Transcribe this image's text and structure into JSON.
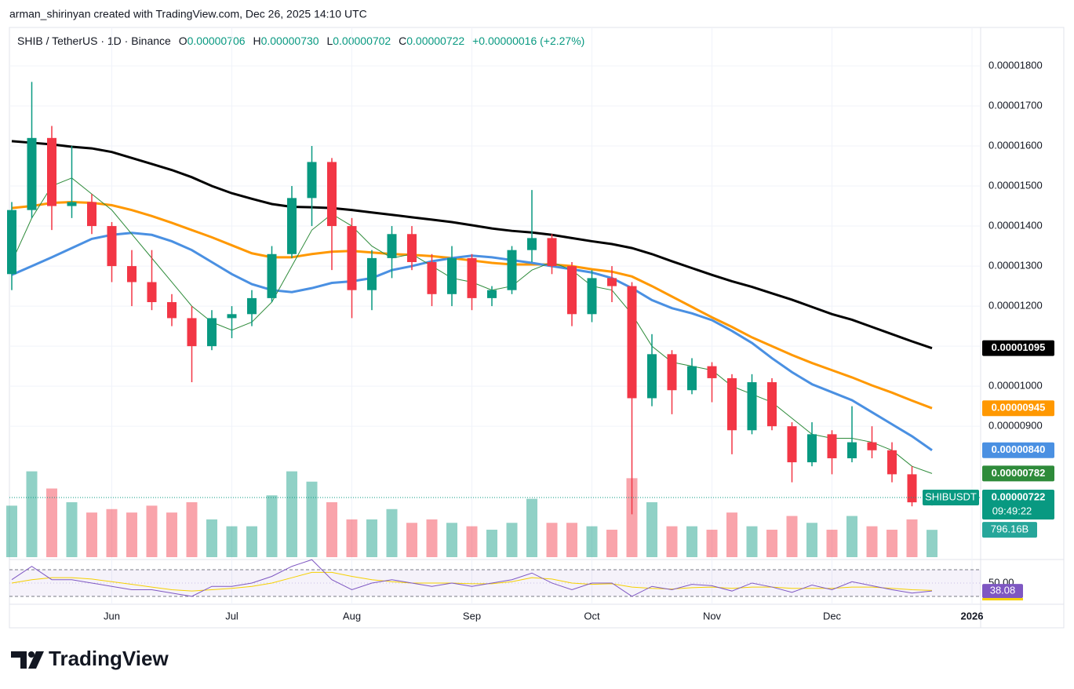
{
  "header": {
    "credit": "arman_shirinyan created with TradingView.com, Dec 26, 2025 14:10 UTC",
    "symbol": "SHIB / TetherUS · 1D · Binance",
    "o": "O",
    "open": "0.00000706",
    "h": "H",
    "high": "0.00000730",
    "l": "L",
    "low": "0.00000702",
    "c": "C",
    "close": "0.00000722",
    "change": "+0.00000016 (+2.27%)"
  },
  "chart_data": {
    "type": "candlestick",
    "categories": [
      null,
      null,
      null,
      null,
      null,
      "Jun",
      null,
      null,
      null,
      null,
      null,
      "Jul",
      null,
      null,
      null,
      null,
      null,
      "Aug",
      null,
      null,
      null,
      null,
      null,
      "Sep",
      null,
      null,
      null,
      null,
      null,
      "Oct",
      null,
      null,
      null,
      null,
      null,
      "Nov",
      null,
      null,
      null,
      null,
      null,
      "Dec",
      null,
      null,
      null,
      null,
      null,
      null,
      "2026"
    ],
    "open": [
      1.28e-05,
      1.44e-05,
      1.62e-05,
      1.45e-05,
      1.46e-05,
      1.4e-05,
      1.3e-05,
      1.26e-05,
      1.21e-05,
      1.17e-05,
      1.1e-05,
      1.17e-05,
      1.18e-05,
      1.22e-05,
      1.33e-05,
      1.47e-05,
      1.56e-05,
      1.4e-05,
      1.24e-05,
      1.32e-05,
      1.38e-05,
      1.31e-05,
      1.23e-05,
      1.32e-05,
      1.22e-05,
      1.24e-05,
      1.34e-05,
      1.37e-05,
      1.3e-05,
      1.18e-05,
      1.27e-05,
      1.25e-05,
      9.7e-06,
      1.08e-05,
      9.9e-06,
      1.05e-05,
      1.02e-05,
      8.9e-06,
      1.01e-05,
      9e-06,
      8.1e-06,
      8.8e-06,
      8.2e-06,
      8.6e-06,
      8.4e-06,
      7.8e-06,
      7.06e-06,
      null,
      null
    ],
    "high": [
      1.46e-05,
      1.76e-05,
      1.65e-05,
      1.6e-05,
      1.48e-05,
      1.41e-05,
      1.34e-05,
      1.34e-05,
      1.23e-05,
      1.2e-05,
      1.19e-05,
      1.2e-05,
      1.24e-05,
      1.35e-05,
      1.5e-05,
      1.6e-05,
      1.57e-05,
      1.42e-05,
      1.34e-05,
      1.4e-05,
      1.4e-05,
      1.33e-05,
      1.35e-05,
      1.33e-05,
      1.25e-05,
      1.35e-05,
      1.49e-05,
      1.38e-05,
      1.31e-05,
      1.29e-05,
      1.3e-05,
      1.26e-05,
      1.13e-05,
      1.09e-05,
      1.07e-05,
      1.06e-05,
      1.03e-05,
      1.03e-05,
      1.02e-05,
      9.1e-06,
      9.1e-06,
      8.9e-06,
      9.5e-06,
      9e-06,
      8.6e-06,
      8e-06,
      7.3e-06,
      null,
      null
    ],
    "low": [
      1.24e-05,
      1.42e-05,
      1.39e-05,
      1.42e-05,
      1.38e-05,
      1.26e-05,
      1.2e-05,
      1.19e-05,
      1.15e-05,
      1.01e-05,
      1.09e-05,
      1.12e-05,
      1.15e-05,
      1.21e-05,
      1.32e-05,
      1.4e-05,
      1.29e-05,
      1.17e-05,
      1.19e-05,
      1.27e-05,
      1.29e-05,
      1.2e-05,
      1.2e-05,
      1.19e-05,
      1.2e-05,
      1.23e-05,
      1.31e-05,
      1.28e-05,
      1.15e-05,
      1.16e-05,
      1.21e-05,
      6.8e-06,
      9.5e-06,
      9.3e-06,
      9.8e-06,
      9.6e-06,
      8.3e-06,
      8.8e-06,
      8.9e-06,
      7.6e-06,
      8e-06,
      7.8e-06,
      8.1e-06,
      8.2e-06,
      7.6e-06,
      7e-06,
      7.02e-06,
      null,
      null
    ],
    "close": [
      1.44e-05,
      1.62e-05,
      1.45e-05,
      1.46e-05,
      1.4e-05,
      1.3e-05,
      1.26e-05,
      1.21e-05,
      1.17e-05,
      1.1e-05,
      1.17e-05,
      1.18e-05,
      1.22e-05,
      1.33e-05,
      1.47e-05,
      1.56e-05,
      1.4e-05,
      1.24e-05,
      1.32e-05,
      1.38e-05,
      1.31e-05,
      1.23e-05,
      1.32e-05,
      1.22e-05,
      1.24e-05,
      1.34e-05,
      1.37e-05,
      1.3e-05,
      1.18e-05,
      1.27e-05,
      1.25e-05,
      9.7e-06,
      1.08e-05,
      9.9e-06,
      1.05e-05,
      1.02e-05,
      8.9e-06,
      1.01e-05,
      9e-06,
      8.1e-06,
      8.8e-06,
      8.2e-06,
      8.6e-06,
      8.4e-06,
      7.8e-06,
      7.1e-06,
      7.22e-06,
      null,
      null
    ],
    "up_color": "#089981",
    "down_color": "#f23645",
    "ylim": [
      5.73e-06,
      1.896e-05
    ],
    "yticks": [
      {
        "value": 1.8e-05,
        "label": "0.00001800"
      },
      {
        "value": 1.7e-05,
        "label": "0.00001700"
      },
      {
        "value": 1.6e-05,
        "label": "0.00001600"
      },
      {
        "value": 1.5e-05,
        "label": "0.00001500"
      },
      {
        "value": 1.4e-05,
        "label": "0.00001400"
      },
      {
        "value": 1.3e-05,
        "label": "0.00001300"
      },
      {
        "value": 1.2e-05,
        "label": "0.00001200"
      },
      {
        "value": 1.1e-05,
        "label": "0.00001100"
      },
      {
        "value": 1e-05,
        "label": "0.00001000"
      },
      {
        "value": 9e-06,
        "label": "0.00000900"
      }
    ],
    "grid": true,
    "series": [
      {
        "color": "#000000",
        "last_label": "0.00001095",
        "values": [
          1.612e-05,
          1.608e-05,
          1.604e-05,
          1.598e-05,
          1.594e-05,
          1.585e-05,
          1.57e-05,
          1.555e-05,
          1.54e-05,
          1.522e-05,
          1.5e-05,
          1.482e-05,
          1.468e-05,
          1.455e-05,
          1.448e-05,
          1.447e-05,
          1.445e-05,
          1.44e-05,
          1.434e-05,
          1.428e-05,
          1.422e-05,
          1.416e-05,
          1.41e-05,
          1.402e-05,
          1.394e-05,
          1.388e-05,
          1.384e-05,
          1.378e-05,
          1.37e-05,
          1.362e-05,
          1.355e-05,
          1.345e-05,
          1.33e-05,
          1.312e-05,
          1.295e-05,
          1.278e-05,
          1.262e-05,
          1.248e-05,
          1.232e-05,
          1.216e-05,
          1.198e-05,
          1.18e-05,
          1.166e-05,
          1.148e-05,
          1.13e-05,
          1.112e-05,
          1.095e-05,
          null,
          null
        ]
      },
      {
        "color": "#ff9800",
        "last_label": "0.00000945",
        "values": [
          1.445e-05,
          1.45e-05,
          1.458e-05,
          1.46e-05,
          1.458e-05,
          1.452e-05,
          1.44e-05,
          1.425e-05,
          1.408e-05,
          1.39e-05,
          1.372e-05,
          1.352e-05,
          1.332e-05,
          1.322e-05,
          1.322e-05,
          1.33e-05,
          1.336e-05,
          1.338e-05,
          1.334e-05,
          1.33e-05,
          1.328e-05,
          1.325e-05,
          1.32e-05,
          1.314e-05,
          1.308e-05,
          1.304e-05,
          1.304e-05,
          1.304e-05,
          1.3e-05,
          1.292e-05,
          1.286e-05,
          1.274e-05,
          1.25e-05,
          1.224e-05,
          1.198e-05,
          1.172e-05,
          1.148e-05,
          1.122e-05,
          1.1e-05,
          1.078e-05,
          1.058e-05,
          1.04e-05,
          1.022e-05,
          1.002e-05,
          9.84e-06,
          9.64e-06,
          9.45e-06,
          null,
          null
        ]
      },
      {
        "color": "#4a90e2",
        "last_label": "0.00000840",
        "values": [
          1.278e-05,
          1.3e-05,
          1.322e-05,
          1.345e-05,
          1.368e-05,
          1.378e-05,
          1.383e-05,
          1.378e-05,
          1.362e-05,
          1.34e-05,
          1.31e-05,
          1.28e-05,
          1.255e-05,
          1.24e-05,
          1.235e-05,
          1.245e-05,
          1.258e-05,
          1.262e-05,
          1.27e-05,
          1.29e-05,
          1.3e-05,
          1.312e-05,
          1.32e-05,
          1.326e-05,
          1.322e-05,
          1.315e-05,
          1.308e-05,
          1.3e-05,
          1.292e-05,
          1.284e-05,
          1.27e-05,
          1.245e-05,
          1.215e-05,
          1.195e-05,
          1.182e-05,
          1.165e-05,
          1.138e-05,
          1.108e-05,
          1.07e-05,
          1.035e-05,
          1.005e-05,
          9.85e-06,
          9.65e-06,
          9.35e-06,
          9.05e-06,
          8.75e-06,
          8.4e-06,
          null,
          null
        ]
      },
      {
        "color": "#2e8b3a",
        "last_label": "0.00000782",
        "values": [
          1.31e-05,
          1.42e-05,
          1.5e-05,
          1.52e-05,
          1.48e-05,
          1.44e-05,
          1.38e-05,
          1.32e-05,
          1.26e-05,
          1.2e-05,
          1.16e-05,
          1.14e-05,
          1.16e-05,
          1.21e-05,
          1.3e-05,
          1.39e-05,
          1.43e-05,
          1.4e-05,
          1.35e-05,
          1.32e-05,
          1.33e-05,
          1.3e-05,
          1.27e-05,
          1.26e-05,
          1.24e-05,
          1.25e-05,
          1.29e-05,
          1.31e-05,
          1.29e-05,
          1.25e-05,
          1.24e-05,
          1.18e-05,
          1.1e-05,
          1.06e-05,
          1.05e-05,
          1.04e-05,
          1e-05,
          9.8e-06,
          9.6e-06,
          9.2e-06,
          8.8e-06,
          8.7e-06,
          8.7e-06,
          8.6e-06,
          8.4e-06,
          8e-06,
          7.82e-06,
          null,
          null
        ]
      }
    ],
    "price_tag": {
      "symbol": "SHIBUSDT",
      "price": "0.00000722",
      "countdown": "09:49:22"
    },
    "volume": {
      "ylim": [
        0,
        4000
      ],
      "last_label": "796.16B",
      "values": [
        1500,
        2500,
        2000,
        1600,
        1300,
        1400,
        1300,
        1500,
        1300,
        1600,
        1100,
        900,
        900,
        1800,
        2500,
        2200,
        1600,
        1100,
        1100,
        1400,
        1000,
        1100,
        1000,
        900,
        800,
        1000,
        1700,
        1000,
        1000,
        900,
        800,
        2300,
        1600,
        900,
        900,
        800,
        1300,
        900,
        800,
        1200,
        1000,
        800,
        1200,
        900,
        800,
        1100,
        796.16,
        null,
        null
      ]
    },
    "rsi": {
      "ylim": [
        27.6,
        79.4
      ],
      "bands": [
        30,
        70
      ],
      "color": "#7e57c2",
      "ma_color": "#f5d000",
      "yticks": [
        {
          "value": 50,
          "label": "50.00"
        }
      ],
      "last_label": "38.08",
      "values": [
        55,
        75,
        55,
        55,
        50,
        45,
        40,
        40,
        35,
        30,
        45,
        45,
        50,
        60,
        75,
        85,
        55,
        40,
        50,
        55,
        50,
        45,
        50,
        45,
        50,
        55,
        65,
        50,
        40,
        50,
        50,
        30,
        45,
        40,
        48,
        46,
        38,
        50,
        44,
        36,
        47,
        40,
        52,
        46,
        40,
        35,
        38.08,
        null,
        null
      ],
      "ma_values": [
        50,
        55,
        58,
        58,
        56,
        52,
        48,
        44,
        40,
        38,
        40,
        42,
        45,
        50,
        58,
        66,
        66,
        60,
        55,
        52,
        50,
        50,
        50,
        49,
        49,
        52,
        58,
        56,
        50,
        48,
        49,
        44,
        42,
        41,
        43,
        44,
        42,
        44,
        44,
        42,
        42,
        42,
        44,
        44,
        42,
        40,
        39,
        null,
        null
      ]
    }
  },
  "footer": {
    "brand": "TradingView"
  }
}
